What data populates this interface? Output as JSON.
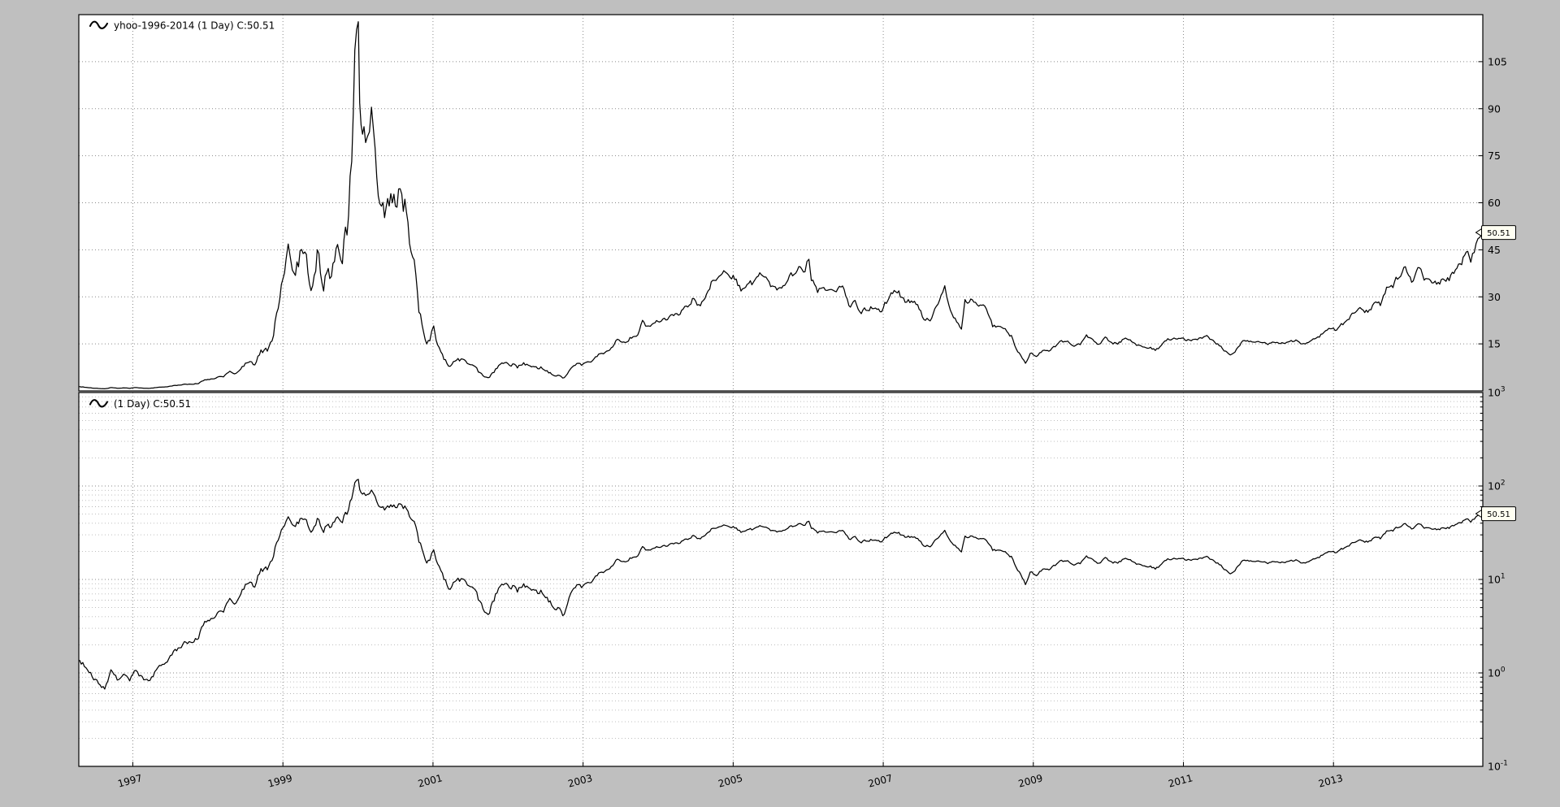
{
  "figure": {
    "background": "#bfbfbf",
    "panel_background": "#ffffff",
    "line_color": "#000000",
    "grid_major_color": "#8a8a8a",
    "grid_minor_color": "#b6b6b6"
  },
  "panels": {
    "linear": {
      "legend": "yhoo-1996-2014 (1 Day) C:50.51",
      "scale": "linear",
      "ylim": [
        0,
        120
      ],
      "y_ticks": [
        105,
        90,
        75,
        60,
        45,
        30,
        15
      ],
      "last_price_tag": "50.51"
    },
    "log": {
      "legend": "(1 Day) C:50.51",
      "scale": "log",
      "ylim": [
        0.1,
        1000
      ],
      "y_tick_exponents": [
        3,
        2,
        1,
        0,
        -1
      ],
      "last_price_tag": "50.51"
    }
  },
  "chart_data": {
    "type": "line",
    "series_name": "yhoo-1996-2014 (1 Day)",
    "last_close": 50.51,
    "x_domain": [
      1996.28,
      2014.99
    ],
    "x_ticks": [
      1997,
      1999,
      2001,
      2003,
      2005,
      2007,
      2009,
      2011,
      2013
    ],
    "grid": true,
    "legend_position": "top-left",
    "noise_profile": {
      "seed": 9,
      "ar": 0.45,
      "eras": [
        [
          1998.6,
          0.05
        ],
        [
          2003.0,
          0.08
        ],
        [
          2009.3,
          0.032
        ],
        [
          2013.0,
          0.026
        ],
        [
          2015.1,
          0.03
        ]
      ]
    },
    "points_monthly": [
      [
        1996.292,
        1.36
      ],
      [
        1996.375,
        1.17
      ],
      [
        1996.458,
        0.94
      ],
      [
        1996.542,
        0.76
      ],
      [
        1996.625,
        0.7
      ],
      [
        1996.708,
        1.06
      ],
      [
        1996.792,
        0.86
      ],
      [
        1996.875,
        0.95
      ],
      [
        1996.958,
        0.86
      ],
      [
        1997.042,
        1.06
      ],
      [
        1997.125,
        0.88
      ],
      [
        1997.208,
        0.81
      ],
      [
        1997.292,
        1.0
      ],
      [
        1997.375,
        1.18
      ],
      [
        1997.458,
        1.38
      ],
      [
        1997.542,
        1.64
      ],
      [
        1997.625,
        1.85
      ],
      [
        1997.708,
        2.15
      ],
      [
        1997.792,
        2.1
      ],
      [
        1997.875,
        2.46
      ],
      [
        1997.958,
        3.46
      ],
      [
        1998.042,
        3.88
      ],
      [
        1998.125,
        4.42
      ],
      [
        1998.208,
        4.74
      ],
      [
        1998.292,
        6.09
      ],
      [
        1998.375,
        5.48
      ],
      [
        1998.458,
        7.87
      ],
      [
        1998.542,
        9.66
      ],
      [
        1998.625,
        8.31
      ],
      [
        1998.708,
        12.97
      ],
      [
        1998.792,
        13.09
      ],
      [
        1998.875,
        19.12
      ],
      [
        1998.958,
        29.62
      ],
      [
        1999.042,
        42.4
      ],
      [
        1999.07,
        44.5
      ],
      [
        1999.125,
        39.1
      ],
      [
        1999.208,
        42.1
      ],
      [
        1999.27,
        47.3
      ],
      [
        1999.292,
        43.7
      ],
      [
        1999.375,
        36.5
      ],
      [
        1999.458,
        43.1
      ],
      [
        1999.542,
        34.4
      ],
      [
        1999.625,
        37.1
      ],
      [
        1999.708,
        44.9
      ],
      [
        1999.792,
        44.8
      ],
      [
        1999.875,
        53.2
      ],
      [
        1999.958,
        108.2
      ],
      [
        2000.005,
        118.75
      ],
      [
        2000.042,
        84.0
      ],
      [
        2000.08,
        92.0
      ],
      [
        2000.125,
        80.0
      ],
      [
        2000.18,
        89.0
      ],
      [
        2000.208,
        86.0
      ],
      [
        2000.25,
        71.0
      ],
      [
        2000.292,
        65.1
      ],
      [
        2000.375,
        56.2
      ],
      [
        2000.458,
        62.0
      ],
      [
        2000.52,
        63.5
      ],
      [
        2000.542,
        66.0
      ],
      [
        2000.625,
        61.0
      ],
      [
        2000.708,
        46.0
      ],
      [
        2000.75,
        41.0
      ],
      [
        2000.792,
        29.3
      ],
      [
        2000.875,
        18.8
      ],
      [
        2000.958,
        15.0
      ],
      [
        2001.01,
        20.0
      ],
      [
        2001.042,
        15.2
      ],
      [
        2001.125,
        11.4
      ],
      [
        2001.208,
        7.9
      ],
      [
        2001.292,
        9.8
      ],
      [
        2001.375,
        9.7
      ],
      [
        2001.458,
        8.9
      ],
      [
        2001.542,
        8.6
      ],
      [
        2001.625,
        5.8
      ],
      [
        2001.708,
        4.3
      ],
      [
        2001.735,
        4.05
      ],
      [
        2001.792,
        5.8
      ],
      [
        2001.875,
        8.0
      ],
      [
        2001.958,
        8.9
      ],
      [
        2002.042,
        8.7
      ],
      [
        2002.125,
        7.4
      ],
      [
        2002.208,
        9.2
      ],
      [
        2002.292,
        7.2
      ],
      [
        2002.375,
        7.8
      ],
      [
        2002.458,
        7.4
      ],
      [
        2002.542,
        6.2
      ],
      [
        2002.6,
        5.2
      ],
      [
        2002.708,
        4.4
      ],
      [
        2002.75,
        4.3
      ],
      [
        2002.792,
        5.9
      ],
      [
        2002.875,
        8.5
      ],
      [
        2002.958,
        8.2
      ],
      [
        2003.042,
        9.4
      ],
      [
        2003.125,
        9.6
      ],
      [
        2003.208,
        11.7
      ],
      [
        2003.292,
        12.1
      ],
      [
        2003.375,
        13.7
      ],
      [
        2003.458,
        16.4
      ],
      [
        2003.542,
        15.4
      ],
      [
        2003.625,
        16.8
      ],
      [
        2003.708,
        17.5
      ],
      [
        2003.792,
        21.8
      ],
      [
        2003.875,
        20.2
      ],
      [
        2003.958,
        22.5
      ],
      [
        2004.042,
        23.0
      ],
      [
        2004.125,
        22.1
      ],
      [
        2004.208,
        24.3
      ],
      [
        2004.292,
        25.2
      ],
      [
        2004.375,
        27.0
      ],
      [
        2004.458,
        29.1
      ],
      [
        2004.542,
        27.4
      ],
      [
        2004.625,
        28.4
      ],
      [
        2004.708,
        33.9
      ],
      [
        2004.792,
        36.1
      ],
      [
        2004.875,
        37.7
      ],
      [
        2004.958,
        37.7
      ],
      [
        2005.042,
        35.2
      ],
      [
        2005.125,
        32.1
      ],
      [
        2005.208,
        33.9
      ],
      [
        2005.292,
        34.5
      ],
      [
        2005.375,
        37.1
      ],
      [
        2005.458,
        34.7
      ],
      [
        2005.542,
        33.1
      ],
      [
        2005.625,
        33.2
      ],
      [
        2005.708,
        33.9
      ],
      [
        2005.792,
        36.9
      ],
      [
        2005.875,
        40.0
      ],
      [
        2005.958,
        39.2
      ],
      [
        2006.01,
        43.3
      ],
      [
        2006.042,
        34.9
      ],
      [
        2006.125,
        32.0
      ],
      [
        2006.208,
        32.3
      ],
      [
        2006.292,
        32.7
      ],
      [
        2006.375,
        31.4
      ],
      [
        2006.458,
        33.0
      ],
      [
        2006.542,
        27.1
      ],
      [
        2006.625,
        28.9
      ],
      [
        2006.708,
        25.3
      ],
      [
        2006.792,
        26.4
      ],
      [
        2006.875,
        27.0
      ],
      [
        2006.958,
        25.5
      ],
      [
        2007.042,
        28.3
      ],
      [
        2007.125,
        30.9
      ],
      [
        2007.208,
        31.3
      ],
      [
        2007.292,
        28.0
      ],
      [
        2007.375,
        28.7
      ],
      [
        2007.458,
        27.1
      ],
      [
        2007.542,
        23.3
      ],
      [
        2007.625,
        22.7
      ],
      [
        2007.708,
        26.8
      ],
      [
        2007.792,
        31.1
      ],
      [
        2007.82,
        33.6
      ],
      [
        2007.875,
        26.8
      ],
      [
        2007.958,
        23.3
      ],
      [
        2008.042,
        19.2
      ],
      [
        2008.09,
        28.4
      ],
      [
        2008.125,
        27.8
      ],
      [
        2008.208,
        28.9
      ],
      [
        2008.292,
        27.4
      ],
      [
        2008.375,
        26.8
      ],
      [
        2008.458,
        20.7
      ],
      [
        2008.542,
        19.9
      ],
      [
        2008.625,
        19.4
      ],
      [
        2008.708,
        17.3
      ],
      [
        2008.792,
        12.8
      ],
      [
        2008.875,
        9.6
      ],
      [
        2008.895,
        9.0
      ],
      [
        2008.958,
        12.2
      ],
      [
        2009.042,
        11.2
      ],
      [
        2009.125,
        12.7
      ],
      [
        2009.208,
        12.8
      ],
      [
        2009.292,
        14.3
      ],
      [
        2009.375,
        15.8
      ],
      [
        2009.458,
        15.7
      ],
      [
        2009.542,
        14.3
      ],
      [
        2009.625,
        14.6
      ],
      [
        2009.708,
        17.8
      ],
      [
        2009.792,
        15.9
      ],
      [
        2009.875,
        15.0
      ],
      [
        2009.958,
        16.8
      ],
      [
        2010.042,
        15.0
      ],
      [
        2010.125,
        15.3
      ],
      [
        2010.208,
        16.5
      ],
      [
        2010.292,
        16.5
      ],
      [
        2010.375,
        15.0
      ],
      [
        2010.458,
        13.8
      ],
      [
        2010.542,
        13.9
      ],
      [
        2010.625,
        13.1
      ],
      [
        2010.708,
        14.2
      ],
      [
        2010.792,
        16.5
      ],
      [
        2010.875,
        16.4
      ],
      [
        2010.958,
        16.6
      ],
      [
        2011.042,
        16.1
      ],
      [
        2011.125,
        16.4
      ],
      [
        2011.208,
        16.7
      ],
      [
        2011.292,
        17.7
      ],
      [
        2011.375,
        16.5
      ],
      [
        2011.458,
        15.0
      ],
      [
        2011.542,
        13.1
      ],
      [
        2011.625,
        11.1
      ],
      [
        2011.708,
        13.2
      ],
      [
        2011.792,
        16.3
      ],
      [
        2011.875,
        15.7
      ],
      [
        2011.958,
        16.1
      ],
      [
        2012.042,
        15.5
      ],
      [
        2012.125,
        14.8
      ],
      [
        2012.208,
        15.2
      ],
      [
        2012.292,
        15.5
      ],
      [
        2012.375,
        15.2
      ],
      [
        2012.458,
        15.8
      ],
      [
        2012.542,
        15.9
      ],
      [
        2012.625,
        14.6
      ],
      [
        2012.708,
        16.0
      ],
      [
        2012.792,
        16.8
      ],
      [
        2012.875,
        18.8
      ],
      [
        2012.958,
        19.9
      ],
      [
        2013.042,
        19.7
      ],
      [
        2013.125,
        21.3
      ],
      [
        2013.208,
        23.5
      ],
      [
        2013.292,
        24.7
      ],
      [
        2013.375,
        26.3
      ],
      [
        2013.458,
        25.1
      ],
      [
        2013.542,
        28.1
      ],
      [
        2013.625,
        27.2
      ],
      [
        2013.708,
        33.2
      ],
      [
        2013.792,
        32.9
      ],
      [
        2013.875,
        36.9
      ],
      [
        2013.958,
        40.4
      ],
      [
        2014.042,
        36.0
      ],
      [
        2014.125,
        38.7
      ],
      [
        2014.208,
        35.9
      ],
      [
        2014.292,
        34.5
      ],
      [
        2014.375,
        34.7
      ],
      [
        2014.458,
        35.1
      ],
      [
        2014.542,
        35.2
      ],
      [
        2014.625,
        38.2
      ],
      [
        2014.708,
        40.8
      ],
      [
        2014.79,
        44.5
      ],
      [
        2014.83,
        41.0
      ],
      [
        2014.9,
        47.0
      ],
      [
        2014.95,
        49.2
      ],
      [
        2014.99,
        50.51
      ]
    ]
  }
}
